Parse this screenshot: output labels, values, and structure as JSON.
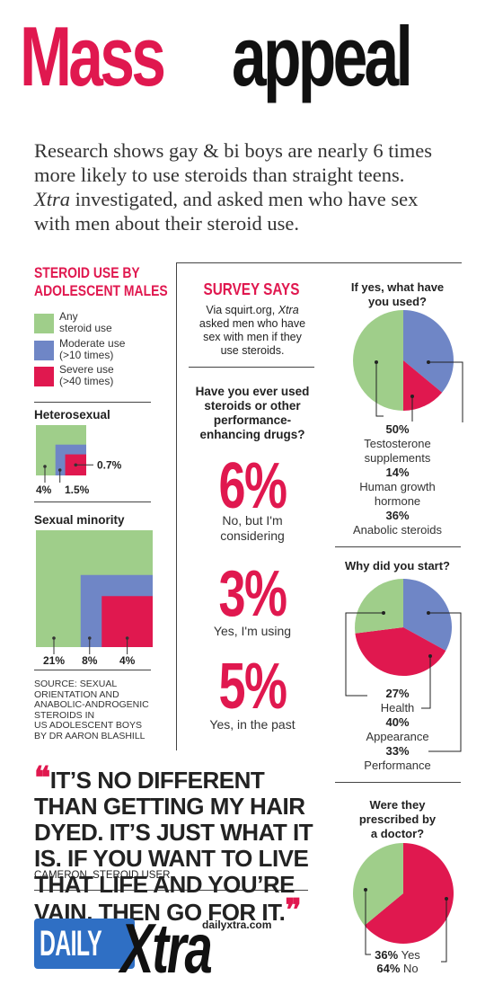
{
  "title": {
    "word1": "Mass",
    "word2": "appeal"
  },
  "intro": {
    "line1": "Research shows gay & bi boys are nearly 6 times",
    "line2": "more likely to use steroids than straight teens.",
    "line3_italic": "Xtra",
    "line3_rest": " investigated, and asked men who have sex",
    "line4": "with men about their steroid use."
  },
  "left": {
    "heading_line1": "STEROID USE BY",
    "heading_line2": "ADOLESCENT MALES",
    "legend": [
      {
        "line1": "Any",
        "line2": "steroid use",
        "color": "#9fce8a"
      },
      {
        "line1": "Moderate use",
        "line2": "(>10 times)",
        "color": "#6f86c6"
      },
      {
        "line1": "Severe use",
        "line2": "(>40 times)",
        "color": "#e0184f"
      }
    ],
    "hetero_label": "Heterosexual",
    "minority_label": "Sexual minority",
    "source": [
      "SOURCE: SEXUAL",
      "ORIENTATION AND",
      "ANABOLIC-ANDROGENIC",
      "STEROIDS IN",
      "US ADOLESCENT BOYS",
      "BY DR AARON BLASHILL"
    ]
  },
  "middle": {
    "heading": "SURVEY SAYS",
    "desc_line1": "Via squirt.org, ",
    "desc_italic": "Xtra",
    "desc_line2": "asked men who have",
    "desc_line3": "sex with men if they",
    "desc_line4": "use steroids.",
    "question": [
      "Have you ever used",
      "steroids or other",
      "performance-",
      "enhancing drugs?"
    ],
    "stats": [
      {
        "pct": "6%",
        "line1": "No, but I'm",
        "line2": "considering"
      },
      {
        "pct": "3%",
        "line1": "Yes, I'm using",
        "line2": ""
      },
      {
        "pct": "5%",
        "line1": "Yes, in the past",
        "line2": ""
      }
    ]
  },
  "quote": {
    "text": "IT’S NO DIFFERENT THAN GETTING MY HAIR DYED. IT’S JUST WHAT IT IS. IF YOU WANT TO LIVE THAT LIFE AND YOU’RE VAIN, THEN GO FOR IT.",
    "attribution": "CAMERON, STEROID USER"
  },
  "logo": {
    "daily": "DAILY",
    "xtra": "Xtra",
    "url": "dailyxtra.com"
  },
  "chart_data": [
    {
      "type": "nested-squares",
      "title": "Heterosexual",
      "categories": [
        "Any steroid use",
        "Moderate use (>10 times)",
        "Severe use (>40 times)"
      ],
      "values": [
        4,
        1.5,
        0.7
      ],
      "value_labels": [
        "4%",
        "1.5%",
        "0.7%"
      ],
      "colors": [
        "#9fce8a",
        "#6f86c6",
        "#e0184f"
      ]
    },
    {
      "type": "nested-squares",
      "title": "Sexual minority",
      "categories": [
        "Any steroid use",
        "Moderate use (>10 times)",
        "Severe use (>40 times)"
      ],
      "values": [
        21,
        8,
        4
      ],
      "value_labels": [
        "21%",
        "8%",
        "4%"
      ],
      "colors": [
        "#9fce8a",
        "#6f86c6",
        "#e0184f"
      ]
    },
    {
      "type": "pie",
      "title": "If yes, what have you used?",
      "slices": [
        {
          "label_line1": "Testosterone",
          "label_line2": "supplements",
          "value": 50,
          "value_label": "50%",
          "color": "#9fce8a"
        },
        {
          "label_line1": "Human growth",
          "label_line2": "hormone",
          "value": 14,
          "value_label": "14%",
          "color": "#e0184f"
        },
        {
          "label_line1": "Anabolic steroids",
          "label_line2": "",
          "value": 36,
          "value_label": "36%",
          "color": "#6f86c6"
        }
      ]
    },
    {
      "type": "pie",
      "title": "Why did you start?",
      "slices": [
        {
          "label_line1": "Health",
          "value": 27,
          "value_label": "27%",
          "color": "#9fce8a"
        },
        {
          "label_line1": "Appearance",
          "value": 40,
          "value_label": "40%",
          "color": "#e0184f"
        },
        {
          "label_line1": "Performance",
          "value": 33,
          "value_label": "33%",
          "color": "#6f86c6"
        }
      ]
    },
    {
      "type": "pie",
      "title": "Were they prescribed by a doctor?",
      "slices": [
        {
          "label_line1": "Yes",
          "value": 36,
          "value_label": "36%",
          "color": "#9fce8a"
        },
        {
          "label_line1": "No",
          "value": 64,
          "value_label": "64%",
          "color": "#e0184f"
        }
      ]
    }
  ]
}
